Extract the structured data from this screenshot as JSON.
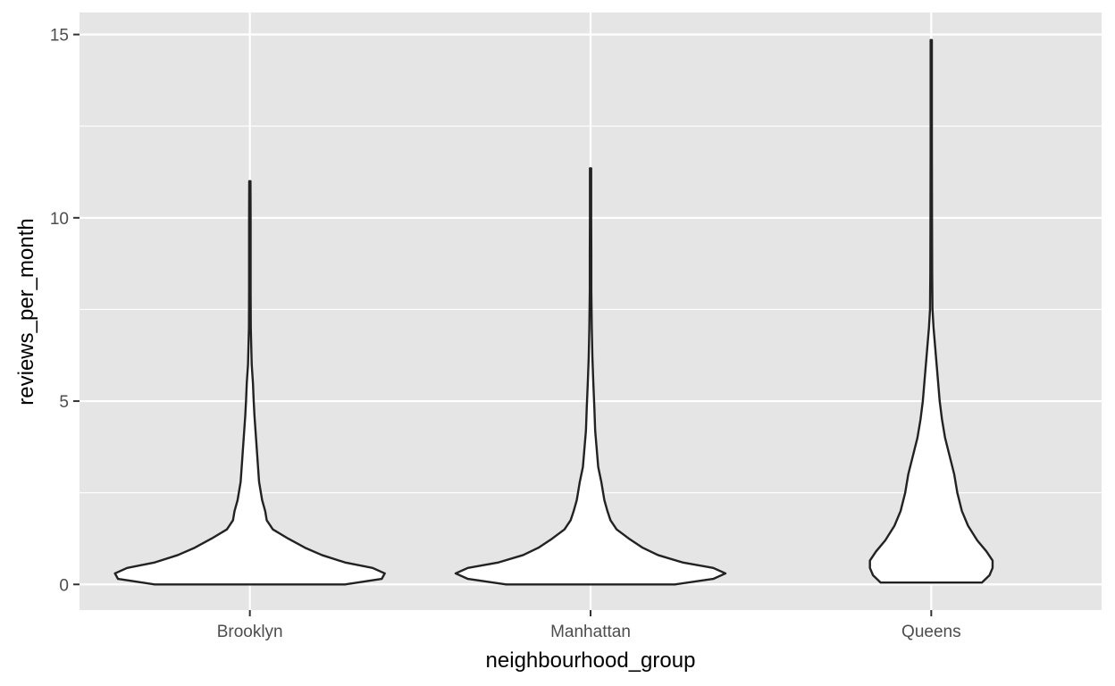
{
  "chart_data": {
    "type": "violin",
    "title": "",
    "xlabel": "neighbourhood_group",
    "ylabel": "reviews_per_month",
    "categories": [
      "Brooklyn",
      "Manhattan",
      "Queens"
    ],
    "ylim": [
      -0.7,
      15.6
    ],
    "yticks": [
      0,
      5,
      10,
      15
    ],
    "ytick_labels": [
      "0",
      "5",
      "10",
      "15"
    ],
    "minor_yticks": [
      2.5,
      7.5,
      12.5
    ],
    "grid": true,
    "legend": "none",
    "colors": {
      "panel": "#e5e5e5",
      "grid": "#ffffff",
      "violin_fill": "#ffffff",
      "violin_stroke": "#222222",
      "tick_label": "#4d4d4d",
      "axis_title": "#000000"
    },
    "violins": [
      {
        "category": "Brooklyn",
        "density_width": [
          [
            0.0,
            0.62
          ],
          [
            0.15,
            0.86
          ],
          [
            0.3,
            0.88
          ],
          [
            0.45,
            0.8
          ],
          [
            0.6,
            0.62
          ],
          [
            0.8,
            0.47
          ],
          [
            1.0,
            0.36
          ],
          [
            1.25,
            0.25
          ],
          [
            1.5,
            0.15
          ],
          [
            1.75,
            0.11
          ],
          [
            2.0,
            0.1
          ],
          [
            2.3,
            0.08
          ],
          [
            2.8,
            0.06
          ],
          [
            3.4,
            0.05
          ],
          [
            4.0,
            0.04
          ],
          [
            4.6,
            0.03
          ],
          [
            5.0,
            0.025
          ],
          [
            5.5,
            0.02
          ],
          [
            6.0,
            0.012
          ],
          [
            7.0,
            0.006
          ],
          [
            8.0,
            0.005
          ],
          [
            9.0,
            0.005
          ],
          [
            10.0,
            0.005
          ],
          [
            11.0,
            0.004
          ]
        ]
      },
      {
        "category": "Manhattan",
        "density_width": [
          [
            0.0,
            0.55
          ],
          [
            0.15,
            0.8
          ],
          [
            0.3,
            0.88
          ],
          [
            0.45,
            0.8
          ],
          [
            0.6,
            0.6
          ],
          [
            0.8,
            0.44
          ],
          [
            1.0,
            0.34
          ],
          [
            1.25,
            0.25
          ],
          [
            1.5,
            0.17
          ],
          [
            1.75,
            0.13
          ],
          [
            2.0,
            0.11
          ],
          [
            2.3,
            0.09
          ],
          [
            2.8,
            0.07
          ],
          [
            3.2,
            0.05
          ],
          [
            3.7,
            0.04
          ],
          [
            4.2,
            0.03
          ],
          [
            4.8,
            0.025
          ],
          [
            5.5,
            0.018
          ],
          [
            6.2,
            0.012
          ],
          [
            7.0,
            0.008
          ],
          [
            8.0,
            0.005
          ],
          [
            9.0,
            0.005
          ],
          [
            10.0,
            0.004
          ],
          [
            11.35,
            0.004
          ]
        ]
      },
      {
        "category": "Queens",
        "density_width": [
          [
            0.05,
            0.33
          ],
          [
            0.25,
            0.38
          ],
          [
            0.45,
            0.4
          ],
          [
            0.65,
            0.4
          ],
          [
            0.9,
            0.36
          ],
          [
            1.2,
            0.3
          ],
          [
            1.6,
            0.24
          ],
          [
            2.0,
            0.2
          ],
          [
            2.5,
            0.17
          ],
          [
            3.0,
            0.15
          ],
          [
            3.5,
            0.12
          ],
          [
            4.0,
            0.09
          ],
          [
            4.5,
            0.07
          ],
          [
            5.0,
            0.055
          ],
          [
            5.5,
            0.045
          ],
          [
            6.0,
            0.035
          ],
          [
            6.5,
            0.025
          ],
          [
            7.0,
            0.015
          ],
          [
            7.5,
            0.008
          ],
          [
            8.5,
            0.006
          ],
          [
            10.0,
            0.005
          ],
          [
            12.0,
            0.004
          ],
          [
            14.0,
            0.004
          ],
          [
            14.85,
            0.004
          ]
        ]
      }
    ]
  }
}
